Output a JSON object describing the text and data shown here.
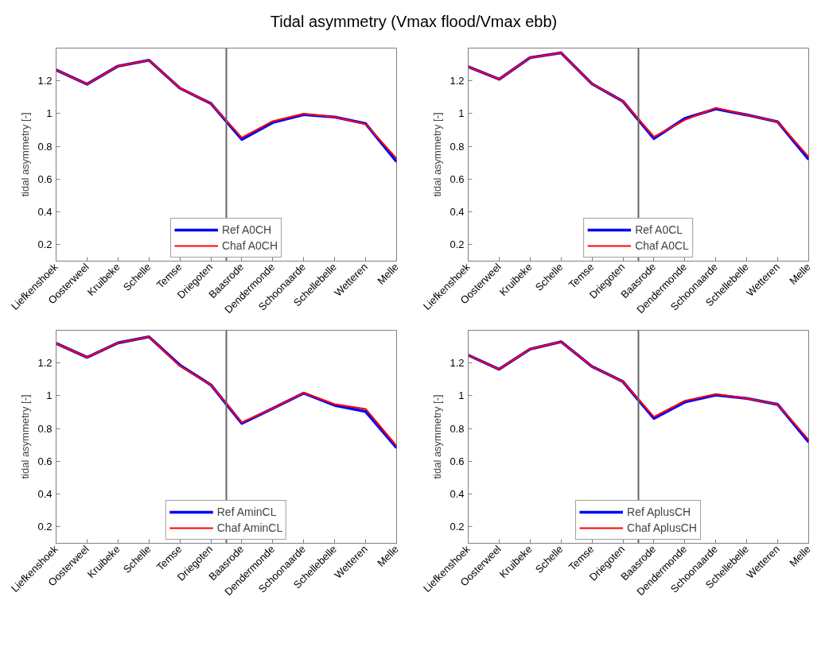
{
  "chart_data": [
    {
      "type": "line",
      "title": "Tidal asymmetry (Vmax flood/Vmax ebb)",
      "ylabel": "tidal asymmetry [-]",
      "categories": [
        "Liefkenshoek",
        "Oosterweel",
        "Kruibeke",
        "Schelle",
        "Temse",
        "Driegoten",
        "Baasrode",
        "Dendermonde",
        "Schoonaarde",
        "Schellebelle",
        "Wetteren",
        "Melle"
      ],
      "ylim": [
        0.1,
        1.4
      ],
      "yticks": [
        0.2,
        0.4,
        0.6,
        0.8,
        1,
        1.2
      ],
      "grid": false,
      "legend": "bottom",
      "series": [
        {
          "name": "Ref A0CH",
          "color": "#0000ff",
          "values": [
            1.267,
            1.18,
            1.29,
            1.326,
            1.155,
            1.062,
            0.843,
            0.946,
            0.994,
            0.979,
            0.939,
            0.707
          ]
        },
        {
          "name": "Chaf A0CH",
          "color": "#ff0000",
          "values": [
            1.267,
            1.18,
            1.29,
            1.326,
            1.155,
            1.062,
            0.854,
            0.954,
            1.0,
            0.979,
            0.936,
            0.726
          ]
        }
      ]
    },
    {
      "type": "line",
      "ylabel": "tidal asymmetry [-]",
      "categories": [
        "Liefkenshoek",
        "Oosterweel",
        "Kruibeke",
        "Schelle",
        "Temse",
        "Driegoten",
        "Baasrode",
        "Dendermonde",
        "Schoonaarde",
        "Schellebelle",
        "Wetteren",
        "Melle"
      ],
      "ylim": [
        0.1,
        1.4
      ],
      "yticks": [
        0.2,
        0.4,
        0.6,
        0.8,
        1,
        1.2
      ],
      "grid": false,
      "legend": "bottom",
      "series": [
        {
          "name": "Ref A0CL",
          "color": "#0000ff",
          "values": [
            1.286,
            1.21,
            1.342,
            1.371,
            1.182,
            1.075,
            0.848,
            0.971,
            1.029,
            0.992,
            0.95,
            0.72
          ]
        },
        {
          "name": "Chaf A0CL",
          "color": "#ff0000",
          "values": [
            1.286,
            1.21,
            1.342,
            1.371,
            1.182,
            1.075,
            0.859,
            0.962,
            1.035,
            0.992,
            0.95,
            0.736
          ]
        }
      ]
    },
    {
      "type": "line",
      "ylabel": "tidal asymmetry [-]",
      "categories": [
        "Liefkenshoek",
        "Oosterweel",
        "Kruibeke",
        "Schelle",
        "Temse",
        "Driegoten",
        "Baasrode",
        "Dendermonde",
        "Schoonaarde",
        "Schellebelle",
        "Wetteren",
        "Melle"
      ],
      "ylim": [
        0.1,
        1.4
      ],
      "yticks": [
        0.2,
        0.4,
        0.6,
        0.8,
        1,
        1.2
      ],
      "grid": false,
      "legend": "bottom",
      "series": [
        {
          "name": "Ref AminCL",
          "color": "#0000ff",
          "values": [
            1.32,
            1.235,
            1.323,
            1.36,
            1.187,
            1.067,
            0.832,
            0.923,
            1.016,
            0.942,
            0.904,
            0.683
          ]
        },
        {
          "name": "Chaf AminCL",
          "color": "#ff0000",
          "values": [
            1.32,
            1.235,
            1.323,
            1.36,
            1.182,
            1.067,
            0.838,
            0.923,
            1.019,
            0.949,
            0.92,
            0.694
          ]
        }
      ]
    },
    {
      "type": "line",
      "ylabel": "tidal asymmetry [-]",
      "categories": [
        "Liefkenshoek",
        "Oosterweel",
        "Kruibeke",
        "Schelle",
        "Temse",
        "Driegoten",
        "Baasrode",
        "Dendermonde",
        "Schoonaarde",
        "Schellebelle",
        "Wetteren",
        "Melle"
      ],
      "ylim": [
        0.1,
        1.4
      ],
      "yticks": [
        0.2,
        0.4,
        0.6,
        0.8,
        1,
        1.2
      ],
      "grid": false,
      "legend": "bottom",
      "series": [
        {
          "name": "Ref AplusCH",
          "color": "#0000ff",
          "values": [
            1.248,
            1.162,
            1.285,
            1.33,
            1.179,
            1.086,
            0.862,
            0.962,
            1.005,
            0.984,
            0.947,
            0.718
          ]
        },
        {
          "name": "Chaf AplusCH",
          "color": "#ff0000",
          "values": [
            1.248,
            1.162,
            1.285,
            1.33,
            1.179,
            1.086,
            0.872,
            0.97,
            1.011,
            0.984,
            0.947,
            0.731
          ]
        }
      ]
    }
  ]
}
